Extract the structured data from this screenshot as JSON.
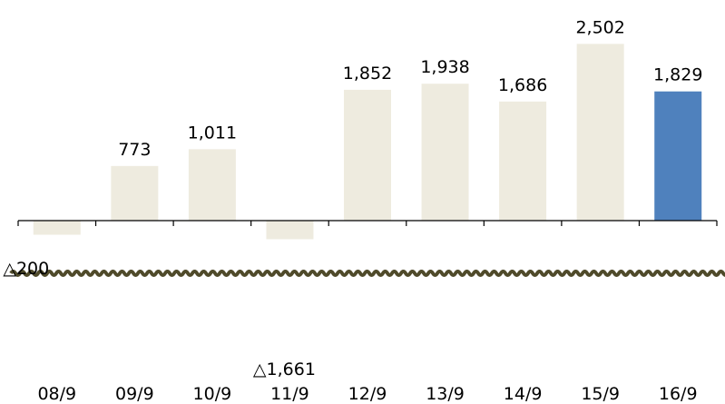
{
  "chart_data": {
    "type": "bar",
    "title": "",
    "xlabel": "",
    "ylabel": "",
    "categories": [
      "08/9",
      "09/9",
      "10/9",
      "11/9",
      "12/9",
      "13/9",
      "14/9",
      "15/9",
      "16/9"
    ],
    "values": [
      -200,
      773,
      1011,
      -1661,
      1852,
      1938,
      1686,
      2502,
      1829
    ],
    "value_labels": [
      "△200",
      "773",
      "1,011",
      "△1,661",
      "1,852",
      "1,938",
      "1,686",
      "2,502",
      "1,829"
    ],
    "axis_break": true,
    "grid": false,
    "highlight_index": 8,
    "colors": {
      "bar": "#eeebdf",
      "highlight": "#4f81bd",
      "break_line": "#4f4a2a"
    }
  }
}
